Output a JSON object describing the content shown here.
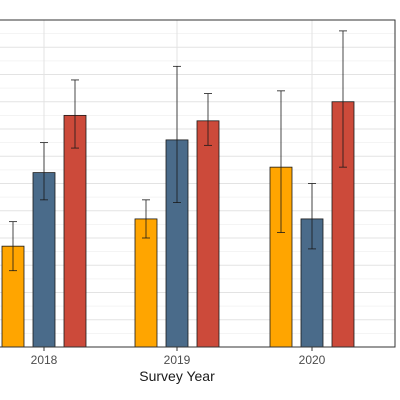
{
  "chart_data": {
    "type": "bar",
    "title": "",
    "xlabel": "Survey Year",
    "ylabel": "",
    "categories": [
      "2018",
      "2019",
      "2020"
    ],
    "ylim": [
      0,
      12
    ],
    "grid": true,
    "legend": "none",
    "series": [
      {
        "color": "#FFA500",
        "values": [
          3.7,
          4.7,
          6.6
        ],
        "error_low": [
          2.8,
          4.0,
          4.2
        ],
        "error_high": [
          4.6,
          5.4,
          9.4
        ]
      },
      {
        "color": "#4A6B8A",
        "values": [
          6.4,
          7.6,
          4.7
        ],
        "error_low": [
          5.4,
          5.3,
          3.6
        ],
        "error_high": [
          7.5,
          10.3,
          6.0
        ]
      },
      {
        "color": "#CC4A3A",
        "values": [
          8.5,
          8.3,
          9.0
        ],
        "error_low": [
          7.3,
          7.4,
          6.6
        ],
        "error_high": [
          9.8,
          9.3,
          11.6
        ]
      }
    ]
  }
}
